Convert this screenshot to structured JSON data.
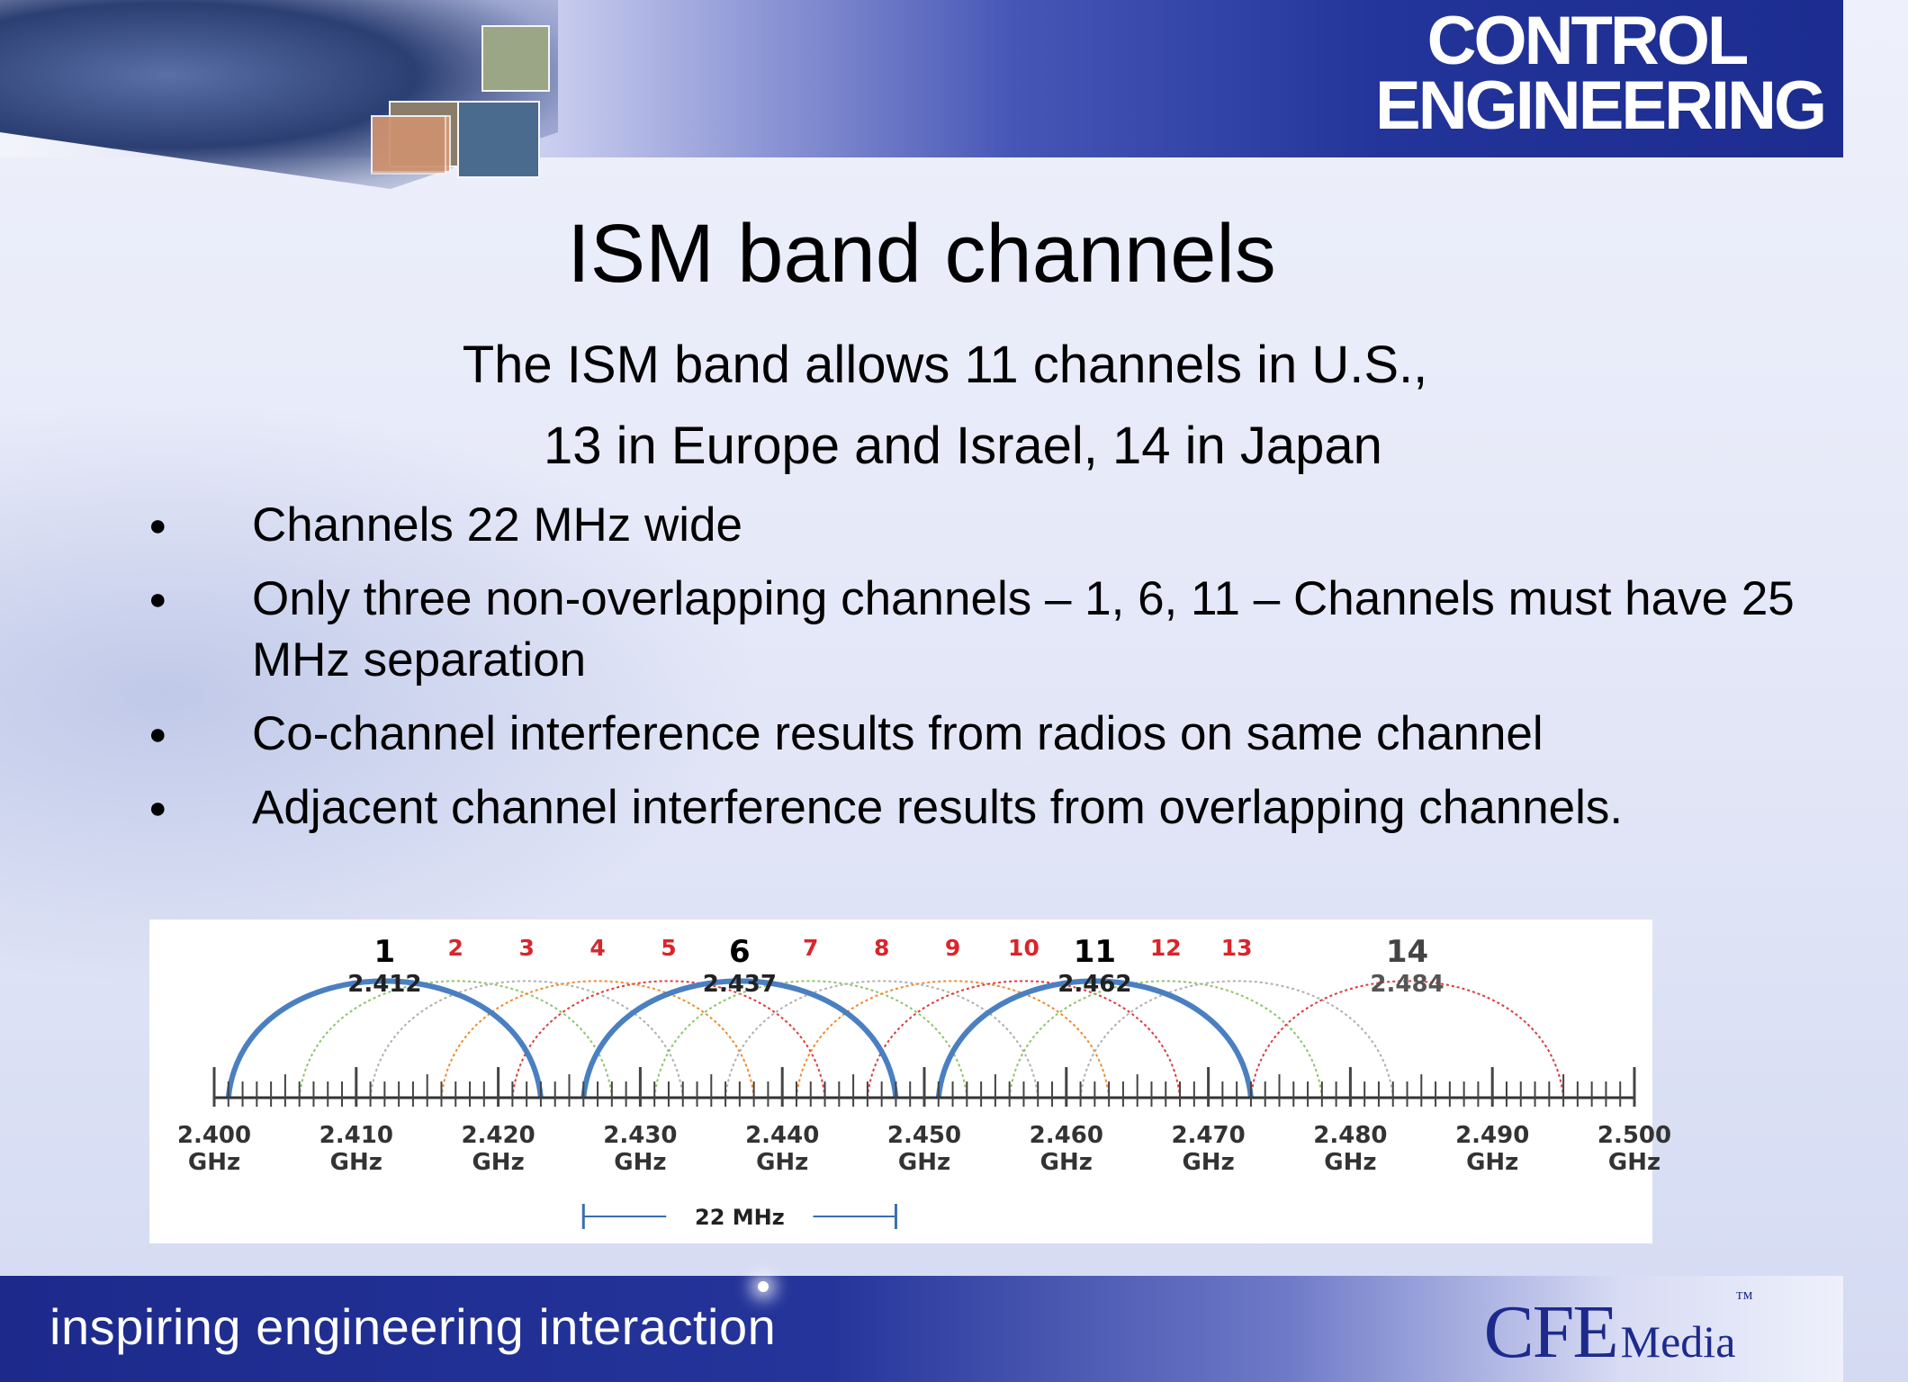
{
  "slide": {
    "title": "ISM band channels",
    "subtitle_lines": [
      "The ISM band  allows 11 channels in U.S.,",
      "13 in Europe and Israel, 14 in Japan"
    ],
    "bullets": [
      "Channels 22 MHz wide",
      "Only three non-overlapping channels – 1, 6, 11 – Channels must have 25 MHz separation",
      "Co-channel interference results from radios on same channel",
      "Adjacent channel interference results from overlapping channels."
    ]
  },
  "branding": {
    "logo_line1": "CONTROL",
    "logo_line2": "ENGINEERING",
    "tagline": "inspiring engineering interaction",
    "company_big": "CFE",
    "company_small": "Media",
    "trademark": "™"
  },
  "chart_data": {
    "type": "channel-spectrum",
    "x_unit": "GHz",
    "xlim": [
      2.4,
      2.5
    ],
    "x_ticks": [
      "2.400",
      "2.410",
      "2.420",
      "2.430",
      "2.440",
      "2.450",
      "2.460",
      "2.470",
      "2.480",
      "2.490",
      "2.500"
    ],
    "tick_unit_label": "GHz",
    "channel_width_mhz": 22,
    "width_annotation": "22 MHz",
    "channels": [
      {
        "number": "1",
        "center": 2.412,
        "center_label": "2.412",
        "highlight": true,
        "color": "#4a7fc1"
      },
      {
        "number": "2",
        "center": 2.417,
        "highlight": false,
        "color": "#8fc46a"
      },
      {
        "number": "3",
        "center": 2.422,
        "highlight": false,
        "color": "#b0b0b0"
      },
      {
        "number": "4",
        "center": 2.427,
        "highlight": false,
        "color": "#f08a2c"
      },
      {
        "number": "5",
        "center": 2.432,
        "highlight": false,
        "color": "#e03a3a"
      },
      {
        "number": "6",
        "center": 2.437,
        "center_label": "2.437",
        "highlight": true,
        "color": "#4a7fc1"
      },
      {
        "number": "7",
        "center": 2.442,
        "highlight": false,
        "color": "#8fc46a"
      },
      {
        "number": "8",
        "center": 2.447,
        "highlight": false,
        "color": "#b0b0b0"
      },
      {
        "number": "9",
        "center": 2.452,
        "highlight": false,
        "color": "#f08a2c"
      },
      {
        "number": "10",
        "center": 2.457,
        "highlight": false,
        "color": "#e03a3a"
      },
      {
        "number": "11",
        "center": 2.462,
        "center_label": "2.462",
        "highlight": true,
        "color": "#4a7fc1"
      },
      {
        "number": "12",
        "center": 2.467,
        "highlight": false,
        "color": "#8fc46a"
      },
      {
        "number": "13",
        "center": 2.472,
        "highlight": false,
        "color": "#b0b0b0"
      },
      {
        "number": "14",
        "center": 2.484,
        "center_label": "2.484",
        "highlight": false,
        "color": "#e03a3a"
      }
    ],
    "label_colors": {
      "primary": "#000000",
      "secondary": "#d9262b",
      "japan": "#444444"
    }
  }
}
